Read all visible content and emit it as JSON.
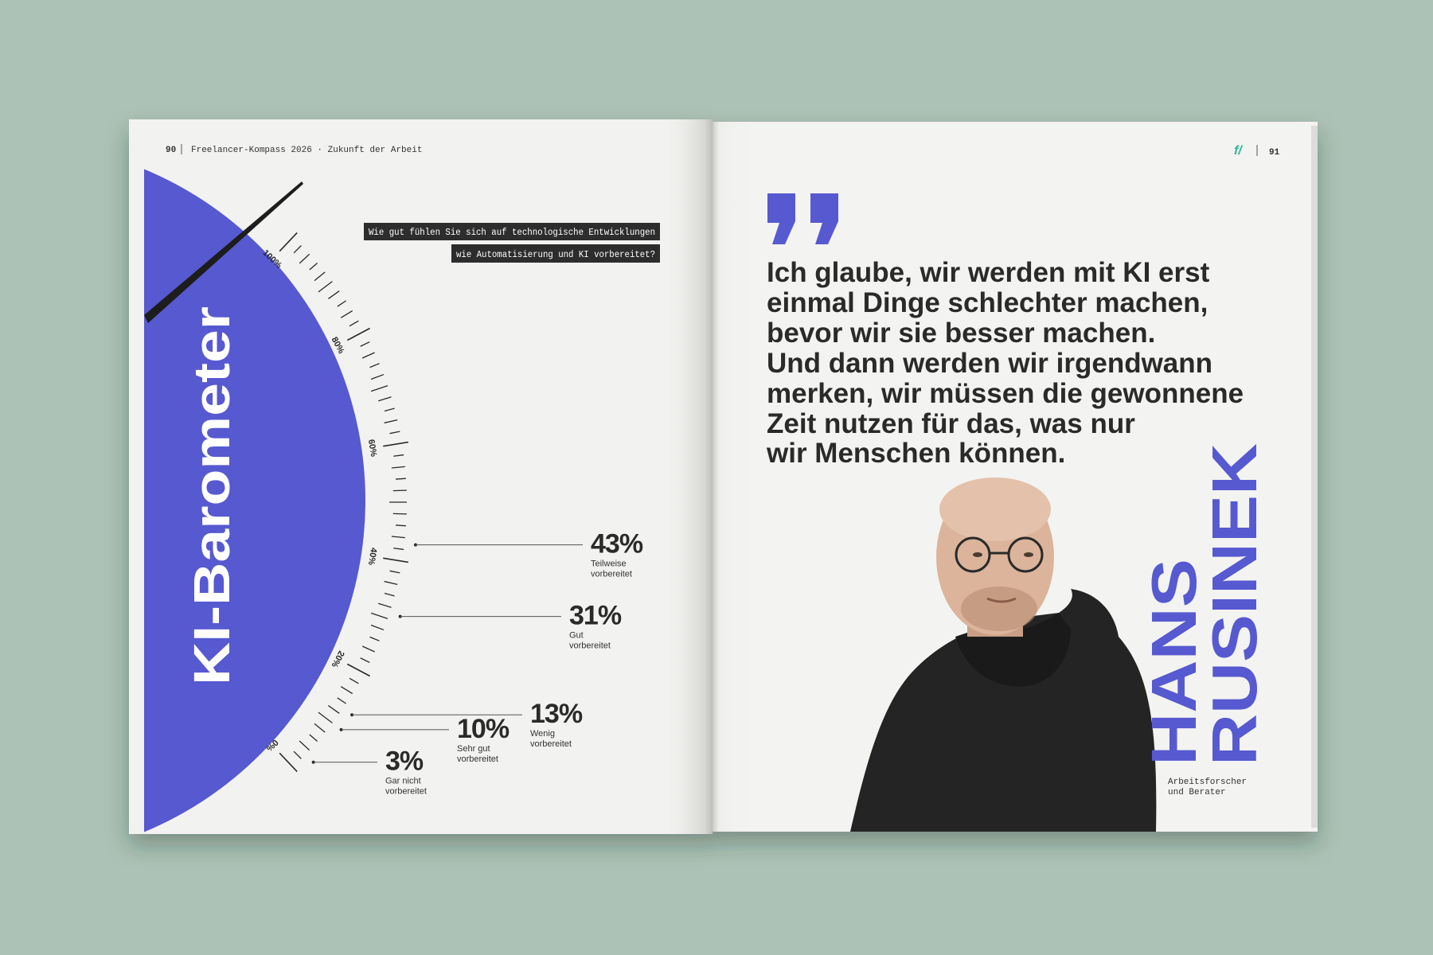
{
  "left_page": {
    "page_number": "90",
    "running_header": "Freelancer-Kompass 2026 · Zukunft der Arbeit",
    "title": "KI-Barometer",
    "question": [
      "Wie gut fühlen Sie sich auf technologische Entwicklungen",
      "wie Automatisierung und KI vorbereitet?"
    ],
    "gauge": {
      "ticks": [
        {
          "value": 0,
          "label": "0%"
        },
        {
          "value": 20,
          "label": "20%"
        },
        {
          "value": 40,
          "label": "40%"
        },
        {
          "value": 60,
          "label": "60%"
        },
        {
          "value": 80,
          "label": "80%"
        },
        {
          "value": 100,
          "label": "100%"
        }
      ],
      "results": [
        {
          "value": 43,
          "value_label": "43%",
          "label": [
            "Teilweise",
            "vorbereitet"
          ]
        },
        {
          "value": 31,
          "value_label": "31%",
          "label": [
            "Gut",
            "vorbereitet"
          ]
        },
        {
          "value": 13,
          "value_label": "13%",
          "label": [
            "Wenig",
            "vorbereitet"
          ]
        },
        {
          "value": 10,
          "value_label": "10%",
          "label": [
            "Sehr gut",
            "vorbereitet"
          ]
        },
        {
          "value": 3,
          "value_label": "3%",
          "label": [
            "Gar nicht",
            "vorbereitet"
          ]
        }
      ]
    }
  },
  "right_page": {
    "logo": "f/",
    "page_number": "91",
    "quote": [
      "Ich glaube, wir werden mit KI erst",
      "einmal Dinge schlechter machen,",
      "bevor wir sie besser machen.",
      "Und dann werden wir irgendwann",
      "merken, wir müssen die gewonnene",
      "Zeit nutzen für das, was nur",
      "wir Menschen können."
    ],
    "name": [
      "HANS",
      "RUSINEK"
    ],
    "role": [
      "Arbeitsforscher",
      "und Berater"
    ]
  }
}
